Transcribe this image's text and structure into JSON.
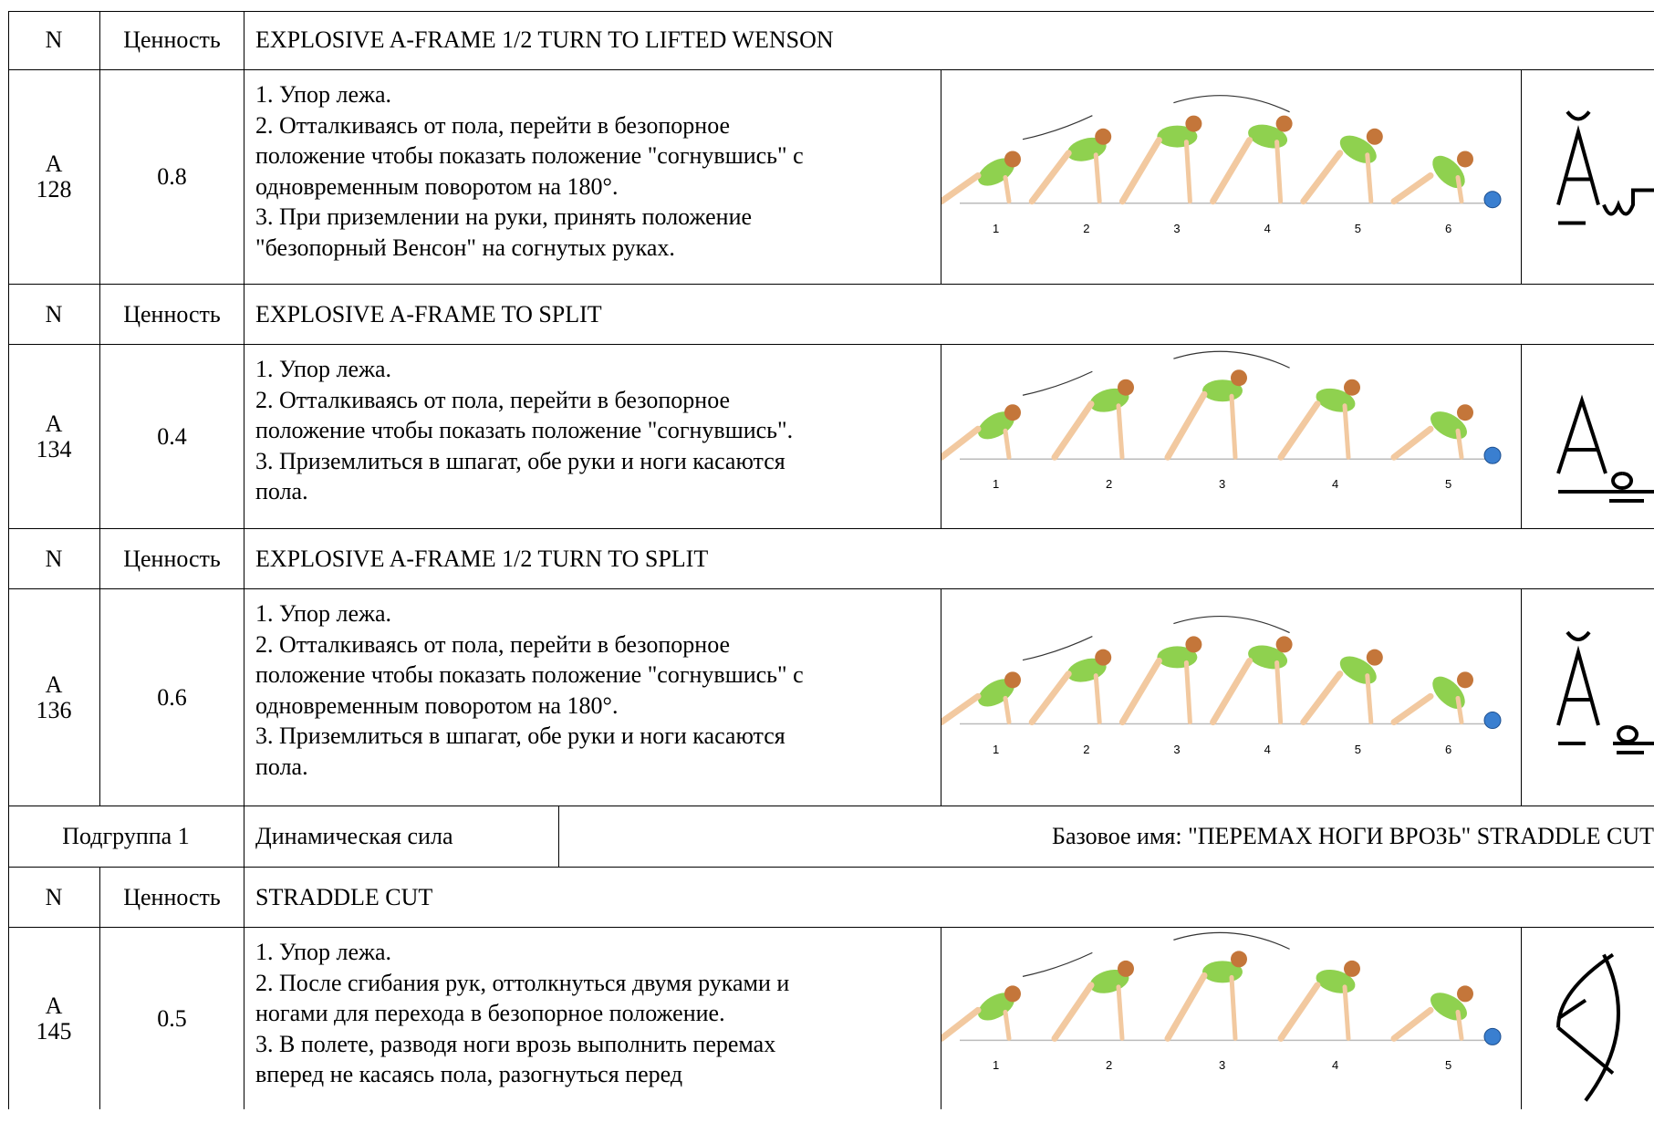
{
  "rows": [
    {
      "kind": "header",
      "n": "N",
      "value": "Ценность",
      "name": "EXPLOSIVE A-FRAME 1/2 TURN TO LIFTED WENSON"
    },
    {
      "kind": "element",
      "code": [
        "A",
        "128"
      ],
      "value": "0.8",
      "description": [
        "1. Упор лежа.",
        "2. Отталкиваясь от пола, перейти в безопорное",
        "положение чтобы показать положение \"согнувшись\" с",
        "одновременным поворотом на 180°.",
        "3. При приземлении на руки, принять положение",
        "\"безопорный Венсон\" на согнутых руках."
      ],
      "steps": [
        "1",
        "2",
        "3",
        "4",
        "5",
        "6"
      ]
    },
    {
      "kind": "header",
      "n": "N",
      "value": "Ценность",
      "name": "EXPLOSIVE A-FRAME TO SPLIT"
    },
    {
      "kind": "element",
      "code": [
        "A",
        "134"
      ],
      "value": "0.4",
      "description": [
        "1. Упор лежа.",
        "2. Отталкиваясь от пола, перейти в безопорное",
        "положение чтобы показать положение \"согнувшись\".",
        "3. Приземлиться в шпагат, обе руки и ноги касаются",
        "пола."
      ],
      "steps": [
        "1",
        "2",
        "3",
        "4",
        "5"
      ]
    },
    {
      "kind": "header",
      "n": "N",
      "value": "Ценность",
      "name": "EXPLOSIVE A-FRAME 1/2 TURN TO SPLIT"
    },
    {
      "kind": "element",
      "code": [
        "A",
        "136"
      ],
      "value": "0.6",
      "description": [
        "1. Упор лежа.",
        "2. Отталкиваясь от пола, перейти в безопорное",
        "положение чтобы показать положение \"согнувшись\" с",
        "одновременным поворотом на 180°.",
        "3. Приземлиться в шпагат, обе руки и ноги касаются",
        "пола."
      ],
      "steps": [
        "1",
        "2",
        "3",
        "4",
        "5",
        "6"
      ]
    },
    {
      "kind": "subgroup",
      "group": "Подгруппа 1",
      "category": "Динамическая сила",
      "base_name": "Базовое имя: \"ПЕРЕМАХ НОГИ ВРОЗЬ\" STRADDLE CUT"
    },
    {
      "kind": "header",
      "n": "N",
      "value": "Ценность",
      "name": "STRADDLE CUT"
    },
    {
      "kind": "element",
      "code": [
        "A",
        "145"
      ],
      "value": "0.5",
      "description": [
        "1. Упор лежа.",
        "2. После сгибания рук, оттолкнуться двумя руками и",
        "ногами для перехода в безопорное положение.",
        "3. В полете, разводя ноги врозь выполнить перемах",
        "вперед не касаясь пола, разогнуться перед"
      ],
      "steps": [
        "1",
        "2",
        "3",
        "4",
        "5"
      ]
    }
  ]
}
